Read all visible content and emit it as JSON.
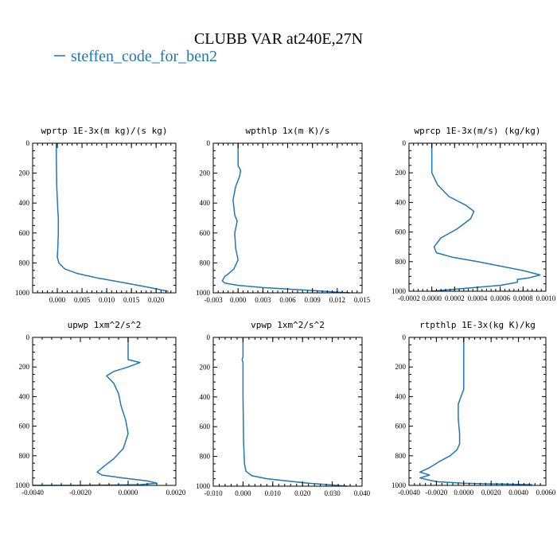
{
  "figure": {
    "title": "CLUBB VAR at240E,27N",
    "legend": "steffen_code_for_ben2",
    "legend_color": "#1f77b4"
  },
  "chart_data": [
    {
      "type": "line",
      "title": "wprtp  1E-3x(m kg)/(s kg)",
      "xlim": [
        -0.005,
        0.024
      ],
      "xticks": [
        "0.000",
        "0.005",
        "0.010",
        "0.015",
        "0.020"
      ],
      "xtick_values": [
        0.0,
        0.005,
        0.01,
        0.015,
        0.02
      ],
      "ylim": [
        0,
        1000
      ],
      "yticks": [
        "0",
        "200",
        "400",
        "600",
        "800",
        "1000"
      ],
      "y_inverted": true,
      "series": [
        {
          "color": "#1f77b4",
          "x": [
            -0.0002,
            -0.0002,
            -0.0001,
            0.0001,
            0.0002,
            0.0002,
            0.0001,
            0.0,
            0.0003,
            0.0015,
            0.004,
            0.008,
            0.013,
            0.018,
            0.0225
          ],
          "y": [
            0,
            100,
            300,
            450,
            500,
            600,
            700,
            760,
            800,
            840,
            870,
            900,
            930,
            960,
            990
          ]
        }
      ]
    },
    {
      "type": "line",
      "title": "wpthlp  1x(m K)/s",
      "xlim": [
        -0.003,
        0.015
      ],
      "xticks": [
        "-0.003",
        "0.000",
        "0.003",
        "0.006",
        "0.009",
        "0.012",
        "0.015"
      ],
      "xtick_values": [
        -0.003,
        0.0,
        0.003,
        0.006,
        0.009,
        0.012,
        0.015
      ],
      "ylim": [
        0,
        1000
      ],
      "yticks": [
        "0",
        "200",
        "400",
        "600",
        "800",
        "1000"
      ],
      "y_inverted": true,
      "series": [
        {
          "color": "#1f77b4",
          "x": [
            0.0,
            0.0,
            0.0,
            0.0003,
            0.0002,
            -0.0003,
            -0.0006,
            -0.0004,
            -0.0001,
            -0.0004,
            -0.0003,
            0.0,
            -0.0005,
            -0.0011,
            -0.0016,
            -0.0019,
            -0.0016,
            0.0,
            0.003,
            0.007,
            0.01,
            0.012,
            0.0135
          ],
          "y": [
            0,
            50,
            150,
            180,
            220,
            290,
            380,
            480,
            520,
            600,
            700,
            780,
            840,
            870,
            890,
            920,
            935,
            950,
            965,
            978,
            988,
            995,
            1000
          ]
        }
      ]
    },
    {
      "type": "line",
      "title": "wprcp  1E-3x(m/s) (kg/kg)",
      "xlim": [
        -0.0002,
        0.001
      ],
      "xticks": [
        "-0.0002",
        "0.0000",
        "0.0002",
        "0.0004",
        "0.0006",
        "0.0008",
        "0.0010"
      ],
      "xtick_values": [
        -0.0002,
        0.0,
        0.0002,
        0.0004,
        0.0006,
        0.0008,
        0.001
      ],
      "ylim": [
        0,
        1000
      ],
      "yticks": [
        "0",
        "200",
        "400",
        "600",
        "800",
        "1000"
      ],
      "y_inverted": true,
      "series": [
        {
          "color": "#1f77b4",
          "x": [
            0.0,
            0.0,
            0.0,
            5e-05,
            0.00015,
            0.0003,
            0.00037,
            0.00034,
            0.00022,
            8e-05,
            2e-05,
            4e-05,
            0.00018,
            0.0004,
            0.0006,
            0.0008,
            0.00095,
            0.00085,
            0.00075,
            0.00075,
            0.0006,
            0.0003,
            0.0
          ],
          "y": [
            0,
            100,
            200,
            280,
            360,
            420,
            460,
            510,
            580,
            640,
            700,
            740,
            770,
            800,
            830,
            860,
            890,
            910,
            920,
            940,
            960,
            980,
            1000
          ]
        }
      ]
    },
    {
      "type": "line",
      "title": "upwp  1xm^2/s^2",
      "xlim": [
        -0.004,
        0.002
      ],
      "xticks": [
        "-0.0040",
        "-0.0020",
        "0.0000",
        "0.0020"
      ],
      "xtick_values": [
        -0.004,
        -0.002,
        0.0,
        0.002
      ],
      "ylim": [
        0,
        1000
      ],
      "yticks": [
        "0",
        "200",
        "400",
        "600",
        "800",
        "1000"
      ],
      "y_inverted": true,
      "series": [
        {
          "color": "#1f77b4",
          "x": [
            0.0,
            0.0,
            0.0,
            0.0005,
            0.0,
            -0.0006,
            -0.0009,
            -0.0006,
            -0.0004,
            -0.0003,
            -0.0001,
            0.0,
            -0.0002,
            -0.0006,
            -0.001,
            -0.0013,
            -0.0011,
            -0.0002,
            0.0008,
            0.0012,
            0.0005,
            -0.002,
            -0.004
          ],
          "y": [
            0,
            100,
            150,
            170,
            200,
            230,
            260,
            310,
            380,
            460,
            560,
            650,
            750,
            820,
            870,
            910,
            930,
            950,
            970,
            985,
            995,
            1000,
            1000
          ]
        }
      ]
    },
    {
      "type": "line",
      "title": "vpwp  1xm^2/s^2",
      "xlim": [
        -0.01,
        0.04
      ],
      "xticks": [
        "-0.010",
        "0.000",
        "0.010",
        "0.020",
        "0.030",
        "0.040"
      ],
      "xtick_values": [
        -0.01,
        0.0,
        0.01,
        0.02,
        0.03,
        0.04
      ],
      "ylim": [
        0,
        1000
      ],
      "yticks": [
        "0",
        "200",
        "400",
        "600",
        "800",
        "1000"
      ],
      "y_inverted": true,
      "series": [
        {
          "color": "#1f77b4",
          "x": [
            0.0,
            0.0,
            -0.0003,
            0.0,
            0.0,
            0.0002,
            0.0005,
            0.001,
            0.003,
            0.008,
            0.015,
            0.022,
            0.03,
            0.035
          ],
          "y": [
            0,
            130,
            150,
            170,
            400,
            700,
            850,
            900,
            930,
            950,
            965,
            980,
            992,
            1000
          ]
        }
      ]
    },
    {
      "type": "line",
      "title": "rtpthlp  1E-3x(kg K)/kg",
      "xlim": [
        -0.004,
        0.006
      ],
      "xticks": [
        "-0.0040",
        "-0.0020",
        "0.0000",
        "0.0020",
        "0.0040",
        "0.0060"
      ],
      "xtick_values": [
        -0.004,
        -0.002,
        0.0,
        0.002,
        0.004,
        0.006
      ],
      "ylim": [
        0,
        1000
      ],
      "yticks": [
        "0",
        "200",
        "400",
        "600",
        "800",
        "1000"
      ],
      "y_inverted": true,
      "series": [
        {
          "color": "#1f77b4",
          "x": [
            0.0,
            0.0,
            0.0,
            -0.0002,
            -0.0004,
            -0.0004,
            -0.0003,
            -0.0003,
            -0.0005,
            -0.001,
            -0.0018,
            -0.0025,
            -0.0032,
            -0.0025,
            -0.0032,
            -0.002,
            0.0,
            0.002,
            0.004,
            0.005
          ],
          "y": [
            0,
            200,
            350,
            400,
            450,
            550,
            650,
            720,
            760,
            800,
            840,
            880,
            910,
            930,
            950,
            975,
            985,
            990,
            993,
            995
          ]
        }
      ]
    }
  ]
}
